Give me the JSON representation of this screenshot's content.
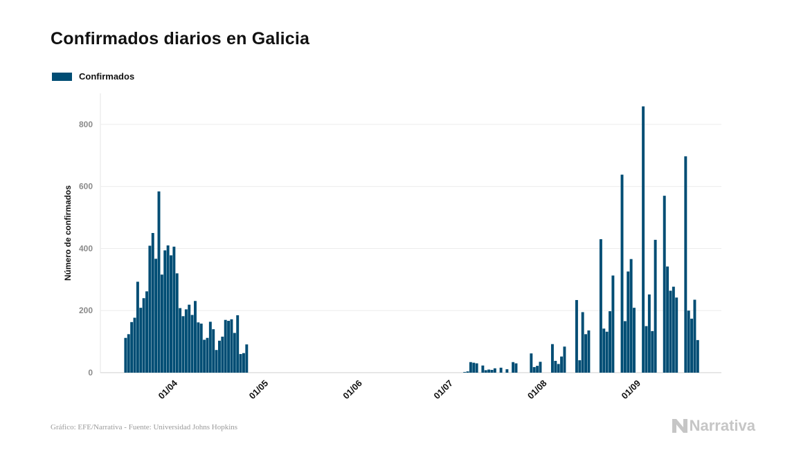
{
  "chart_data": {
    "type": "bar",
    "title": "Confirmados diarios en Galicia",
    "ylabel": "Número de confirmados",
    "xlabel": "",
    "ylim": [
      0,
      900
    ],
    "yticks": [
      0,
      200,
      400,
      600,
      800
    ],
    "grid": true,
    "legend_position": "top-left",
    "x_start": "2020-03-17",
    "x_ticks": [
      {
        "label": "01/04",
        "date": "2020-04-01"
      },
      {
        "label": "01/05",
        "date": "2020-05-01"
      },
      {
        "label": "01/06",
        "date": "2020-06-01"
      },
      {
        "label": "01/07",
        "date": "2020-07-01"
      },
      {
        "label": "01/08",
        "date": "2020-08-01"
      },
      {
        "label": "01/09",
        "date": "2020-09-01"
      }
    ],
    "series": [
      {
        "name": "Confirmados",
        "color": "#004d74",
        "values": [
          112,
          124,
          163,
          177,
          293,
          209,
          240,
          262,
          409,
          450,
          367,
          584,
          316,
          394,
          410,
          378,
          406,
          320,
          208,
          182,
          204,
          219,
          186,
          231,
          162,
          158,
          106,
          112,
          164,
          140,
          73,
          103,
          116,
          170,
          167,
          172,
          128,
          185,
          60,
          63,
          91,
          0,
          0,
          0,
          0,
          0,
          0,
          0,
          0,
          0,
          0,
          0,
          0,
          0,
          0,
          0,
          0,
          0,
          0,
          0,
          0,
          0,
          0,
          0,
          0,
          0,
          0,
          0,
          0,
          0,
          0,
          0,
          0,
          0,
          0,
          0,
          0,
          0,
          0,
          0,
          0,
          0,
          0,
          0,
          0,
          0,
          0,
          0,
          0,
          0,
          0,
          0,
          0,
          0,
          0,
          0,
          0,
          0,
          0,
          0,
          0,
          0,
          0,
          0,
          0,
          0,
          0,
          0,
          0,
          0,
          0,
          0,
          2,
          4,
          34,
          32,
          30,
          0,
          23,
          8,
          10,
          9,
          14,
          0,
          16,
          0,
          11,
          0,
          34,
          30,
          0,
          0,
          0,
          0,
          62,
          18,
          22,
          35,
          0,
          0,
          0,
          92,
          38,
          28,
          52,
          84,
          0,
          0,
          0,
          234,
          40,
          195,
          124,
          136,
          0,
          0,
          0,
          430,
          142,
          132,
          198,
          313,
          0,
          0,
          638,
          166,
          326,
          366,
          209,
          0,
          0,
          858,
          150,
          252,
          134,
          428,
          0,
          0,
          570,
          342,
          264,
          277,
          242,
          0,
          0,
          697,
          200,
          174,
          235,
          105
        ]
      }
    ],
    "source": "Gráfico: EFE/Narrativa - Fuente: Universidad Johns Hopkins",
    "brand": "Narrativa"
  }
}
